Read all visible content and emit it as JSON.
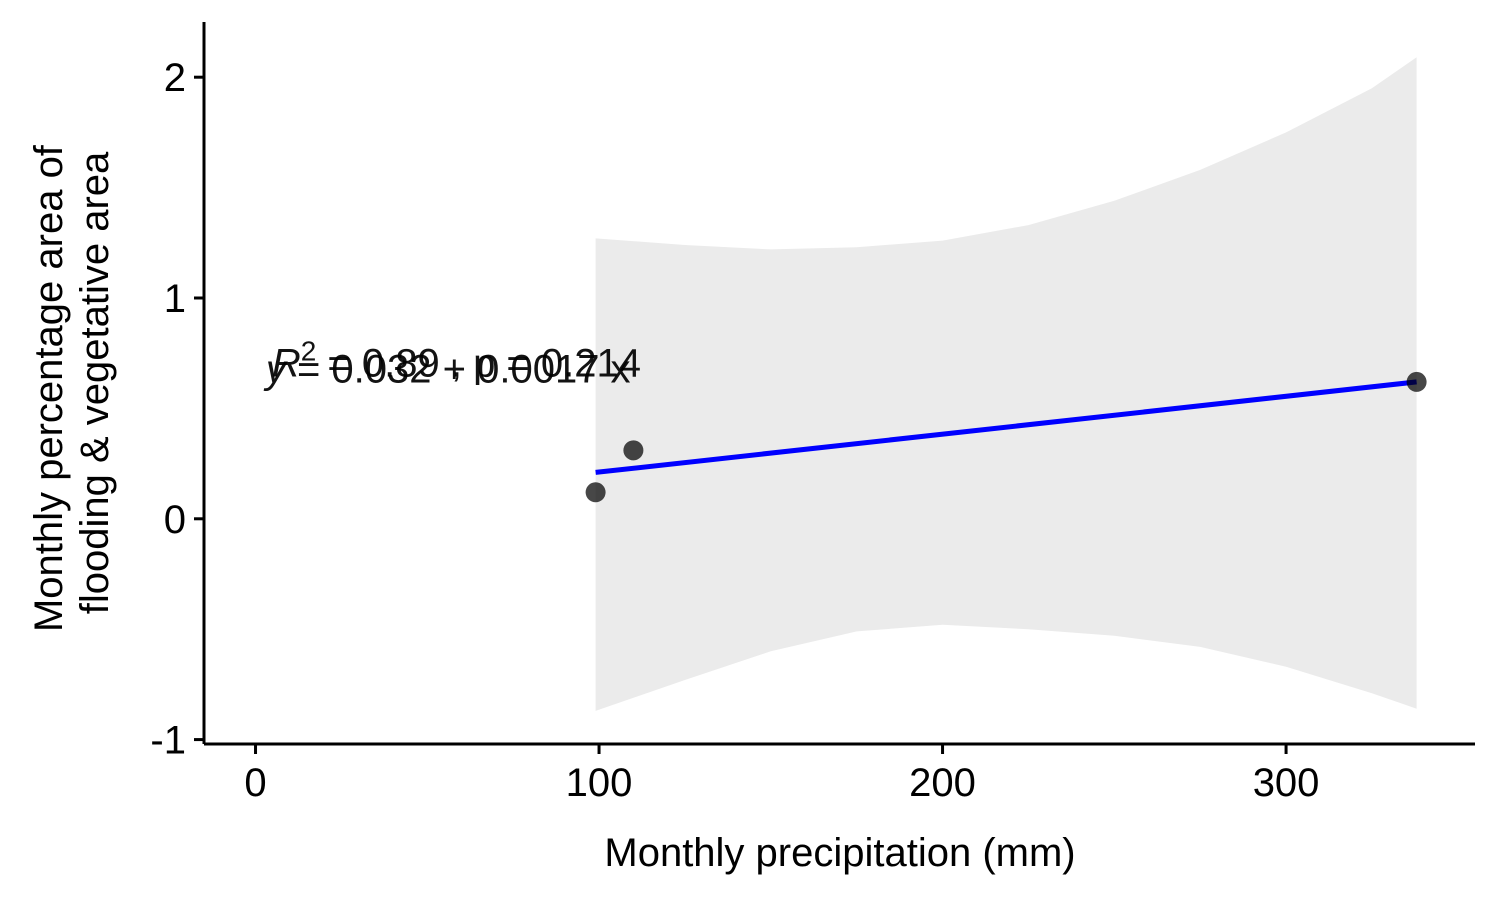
{
  "chart_data": {
    "type": "scatter",
    "title": "",
    "xlabel": "Monthly precipitation (mm)",
    "ylabel_lines": [
      "Monthly percentage area of",
      "flooding & vegetative area"
    ],
    "xlim": [
      -15,
      355
    ],
    "ylim": [
      -1.02,
      2.25
    ],
    "x_ticks": [
      0,
      100,
      200,
      300
    ],
    "y_ticks": [
      -1,
      0,
      1,
      2
    ],
    "grid": false,
    "points": [
      {
        "x": 99,
        "y": 0.12
      },
      {
        "x": 110,
        "y": 0.31
      },
      {
        "x": 338,
        "y": 0.62
      }
    ],
    "fit": {
      "x_start": 99,
      "y_start": 0.21,
      "x_end": 338,
      "y_end": 0.62,
      "color": "#0000ff"
    },
    "confidence_band": {
      "color": "#ebebeb",
      "x": [
        99,
        125,
        150,
        175,
        200,
        225,
        250,
        275,
        300,
        325,
        338
      ],
      "upper": [
        1.27,
        1.24,
        1.22,
        1.23,
        1.26,
        1.33,
        1.44,
        1.58,
        1.75,
        1.95,
        2.09
      ],
      "lower": [
        -0.87,
        -0.73,
        -0.6,
        -0.51,
        -0.48,
        -0.5,
        -0.53,
        -0.58,
        -0.67,
        -0.79,
        -0.86
      ]
    },
    "annotations": {
      "equation_prefix": "y",
      "equation_rest": " = 0.032 + 0.0017 x",
      "r2_prefix": "R",
      "r2_sup": "2",
      "r2_rest": " = 0.89 , p = 0.214",
      "anchor": {
        "x": 3,
        "y": 0.68
      }
    },
    "point_color": "#000000",
    "axis_color": "#000000"
  }
}
